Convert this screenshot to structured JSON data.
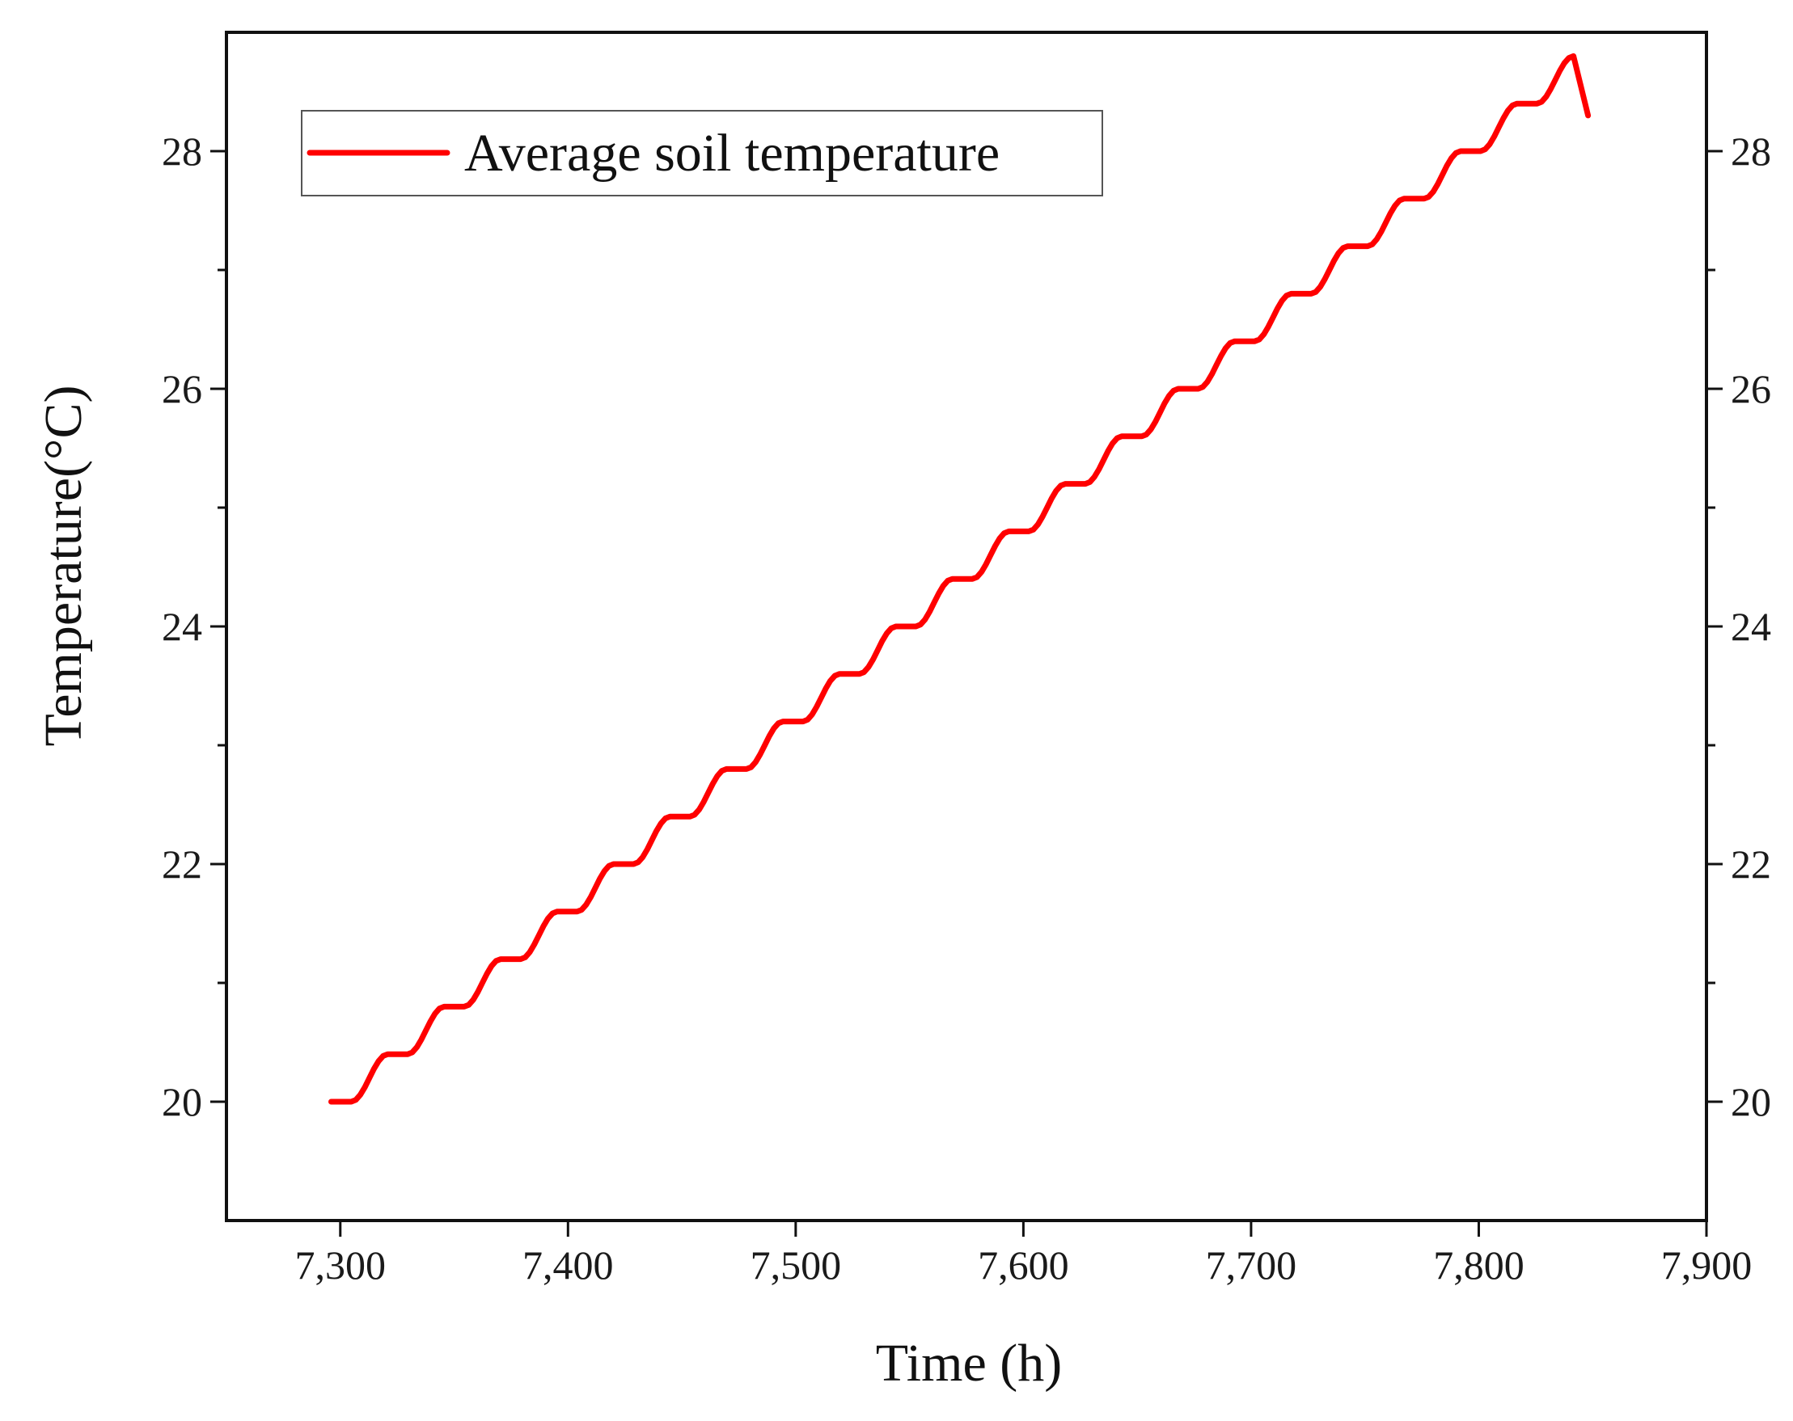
{
  "chart_data": {
    "type": "line",
    "title": "",
    "xlabel": "Time (h)",
    "ylabel": "Temperature(°C)",
    "xlim": [
      7250,
      7900
    ],
    "ylim": [
      19,
      29
    ],
    "x_ticks": [
      7300,
      7400,
      7500,
      7600,
      7700,
      7800,
      7900
    ],
    "x_tick_labels": [
      "7,300",
      "7,400",
      "7,500",
      "7,600",
      "7,700",
      "7,800",
      "7,900"
    ],
    "y_ticks": [
      20,
      22,
      24,
      26,
      28
    ],
    "y_tick_labels": [
      "20",
      "22",
      "24",
      "26",
      "28"
    ],
    "y_minor_ticks": [
      21,
      23,
      25,
      27
    ],
    "right_axis_mirrored": true,
    "grid": false,
    "legend": {
      "position": "top-left",
      "entries": [
        "Average soil temperature"
      ]
    },
    "series": [
      {
        "name": "Average soil temperature",
        "color": "#ff0000",
        "x_start": 7296,
        "period_h": 24.8,
        "step_rise": 0.4,
        "rise_duration_h": 16,
        "start_value": 20,
        "end_x": 7848,
        "end_value": 28.3
      }
    ]
  }
}
